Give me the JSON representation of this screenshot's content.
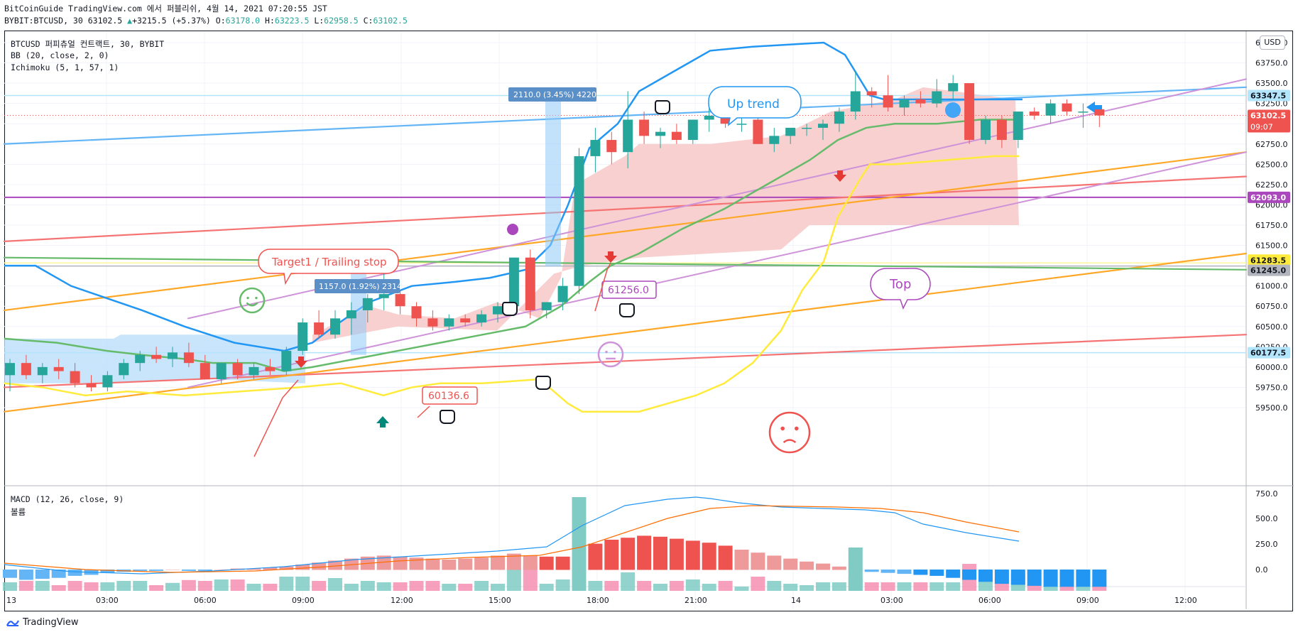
{
  "header": {
    "line1": "BitCoinGuide TradingView.com 에서 퍼블리쉬, 4월 14, 2021 07:20:55 JST",
    "symbol": "BYBIT:BTCUSD, 30",
    "last": "63102.5",
    "change": "+3215.5 (+5.37%)",
    "o_label": "O:",
    "o": "63178.0",
    "h_label": "H:",
    "h": "63223.5",
    "l_label": "L:",
    "l": "62958.5",
    "c_label": "C:",
    "c": "63102.5"
  },
  "legend": {
    "title": "BTCUSD 퍼피츄얼 컨트랙트, 30, BYBIT",
    "bb": "BB (20, close, 2, 0)",
    "ichimoku": "Ichimoku (5, 1, 57, 1)",
    "macd": "MACD (12, 26, close, 9)",
    "volume": "볼륨"
  },
  "currency_badge": "USD",
  "annotations": {
    "target": "Target1 / Trailing stop",
    "up_trend": "Up trend",
    "top": "Top",
    "measure1": "1157.0 (1.92%) 2314",
    "measure2": "2110.0 (3.45%) 4220",
    "level1": "60136.6",
    "level2": "61256.0"
  },
  "price_badges": {
    "p1": "63347.5",
    "p2": "63102.5",
    "p2_sub": "09:07",
    "p3": "62093.0",
    "p4": "61283.5",
    "p5": "61245.0",
    "p6": "60177.5"
  },
  "footer": {
    "brand": "TradingView"
  },
  "colors": {
    "up": "#26a69a",
    "down": "#ef5350",
    "bb": "#2196f3",
    "tenkan": "#4caf50",
    "kijun_yellow": "#ffeb3b",
    "cloud_red": "#f8c8c8",
    "cloud_blue": "#bbdefb",
    "orange": "#ffa726",
    "red_line": "#f57373",
    "purple": "#ab47bc"
  },
  "chart_data": {
    "type": "candlestick",
    "price_axis": {
      "ticks": [
        "64000.0",
        "63750.0",
        "63500.0",
        "63250.0",
        "63000.0",
        "62750.0",
        "62500.0",
        "62250.0",
        "62000.0",
        "61750.0",
        "61500.0",
        "61250.0",
        "61000.0",
        "60750.0",
        "60500.0",
        "60250.0",
        "60000.0",
        "59750.0",
        "59500.0"
      ],
      "ylim": [
        59400,
        64100
      ]
    },
    "macd_axis": {
      "ticks": [
        "750.0",
        "500.0",
        "250.0",
        "0.0"
      ]
    },
    "time_axis": [
      "13",
      "03:00",
      "06:00",
      "09:00",
      "12:00",
      "15:00",
      "18:00",
      "21:00",
      "14",
      "03:00",
      "06:00",
      "09:00",
      "12:00"
    ],
    "candles": [
      {
        "o": 59900,
        "h": 60100,
        "l": 59700,
        "c": 60050
      },
      {
        "o": 60050,
        "h": 60150,
        "l": 59850,
        "c": 59900
      },
      {
        "o": 59900,
        "h": 60050,
        "l": 59800,
        "c": 60000
      },
      {
        "o": 60000,
        "h": 60100,
        "l": 59850,
        "c": 59950
      },
      {
        "o": 59950,
        "h": 60050,
        "l": 59750,
        "c": 59800
      },
      {
        "o": 59800,
        "h": 59900,
        "l": 59700,
        "c": 59750
      },
      {
        "o": 59750,
        "h": 59950,
        "l": 59700,
        "c": 59900
      },
      {
        "o": 59900,
        "h": 60100,
        "l": 59850,
        "c": 60050
      },
      {
        "o": 60050,
        "h": 60200,
        "l": 59950,
        "c": 60150
      },
      {
        "o": 60150,
        "h": 60250,
        "l": 60050,
        "c": 60100
      },
      {
        "o": 60100,
        "h": 60250,
        "l": 60000,
        "c": 60180
      },
      {
        "o": 60180,
        "h": 60300,
        "l": 60000,
        "c": 60050
      },
      {
        "o": 60050,
        "h": 60150,
        "l": 59850,
        "c": 59850
      },
      {
        "o": 59850,
        "h": 60050,
        "l": 59800,
        "c": 60050
      },
      {
        "o": 60050,
        "h": 60100,
        "l": 59850,
        "c": 59900
      },
      {
        "o": 59900,
        "h": 60050,
        "l": 59850,
        "c": 60000
      },
      {
        "o": 60000,
        "h": 60100,
        "l": 59900,
        "c": 59950
      },
      {
        "o": 59950,
        "h": 60250,
        "l": 59900,
        "c": 60200
      },
      {
        "o": 60200,
        "h": 60600,
        "l": 60150,
        "c": 60550
      },
      {
        "o": 60550,
        "h": 60700,
        "l": 60350,
        "c": 60400
      },
      {
        "o": 60400,
        "h": 60700,
        "l": 60350,
        "c": 60600
      },
      {
        "o": 60600,
        "h": 60800,
        "l": 60400,
        "c": 60700
      },
      {
        "o": 60700,
        "h": 60900,
        "l": 60550,
        "c": 60850
      },
      {
        "o": 60850,
        "h": 61150,
        "l": 60700,
        "c": 60900
      },
      {
        "o": 60900,
        "h": 60950,
        "l": 60650,
        "c": 60750
      },
      {
        "o": 60750,
        "h": 60800,
        "l": 60500,
        "c": 60600
      },
      {
        "o": 60600,
        "h": 60700,
        "l": 60450,
        "c": 60500
      },
      {
        "o": 60500,
        "h": 60650,
        "l": 60450,
        "c": 60600
      },
      {
        "o": 60600,
        "h": 60650,
        "l": 60500,
        "c": 60550
      },
      {
        "o": 60550,
        "h": 60700,
        "l": 60500,
        "c": 60650
      },
      {
        "o": 60650,
        "h": 60800,
        "l": 60550,
        "c": 60750
      },
      {
        "o": 60750,
        "h": 61350,
        "l": 60650,
        "c": 61350
      },
      {
        "o": 61350,
        "h": 61450,
        "l": 60600,
        "c": 60700
      },
      {
        "o": 60700,
        "h": 60800,
        "l": 60600,
        "c": 60800
      },
      {
        "o": 60800,
        "h": 61100,
        "l": 60700,
        "c": 61000
      },
      {
        "o": 61000,
        "h": 62700,
        "l": 60900,
        "c": 62600
      },
      {
        "o": 62600,
        "h": 62950,
        "l": 62400,
        "c": 62800
      },
      {
        "o": 62800,
        "h": 62900,
        "l": 62500,
        "c": 62650
      },
      {
        "o": 62650,
        "h": 63400,
        "l": 62450,
        "c": 63050
      },
      {
        "o": 63050,
        "h": 63150,
        "l": 62750,
        "c": 62850
      },
      {
        "o": 62850,
        "h": 62950,
        "l": 62700,
        "c": 62900
      },
      {
        "o": 62900,
        "h": 63000,
        "l": 62750,
        "c": 62800
      },
      {
        "o": 62800,
        "h": 63050,
        "l": 62750,
        "c": 63050
      },
      {
        "o": 63050,
        "h": 63250,
        "l": 62900,
        "c": 63100
      },
      {
        "o": 63100,
        "h": 63150,
        "l": 62950,
        "c": 63000
      },
      {
        "o": 63000,
        "h": 63100,
        "l": 62900,
        "c": 63000
      },
      {
        "o": 63050,
        "h": 63100,
        "l": 62750,
        "c": 62750
      },
      {
        "o": 62750,
        "h": 62950,
        "l": 62650,
        "c": 62850
      },
      {
        "o": 62850,
        "h": 62950,
        "l": 62750,
        "c": 62950
      },
      {
        "o": 62950,
        "h": 63000,
        "l": 62850,
        "c": 62950
      },
      {
        "o": 62950,
        "h": 63050,
        "l": 62800,
        "c": 63000
      },
      {
        "o": 63000,
        "h": 63200,
        "l": 62900,
        "c": 63150
      },
      {
        "o": 63150,
        "h": 63650,
        "l": 63050,
        "c": 63400
      },
      {
        "o": 63400,
        "h": 63450,
        "l": 63200,
        "c": 63350
      },
      {
        "o": 63350,
        "h": 63600,
        "l": 63150,
        "c": 63200
      },
      {
        "o": 63200,
        "h": 63350,
        "l": 63100,
        "c": 63300
      },
      {
        "o": 63300,
        "h": 63400,
        "l": 63200,
        "c": 63250
      },
      {
        "o": 63250,
        "h": 63550,
        "l": 63200,
        "c": 63400
      },
      {
        "o": 63400,
        "h": 63600,
        "l": 63300,
        "c": 63500
      },
      {
        "o": 63500,
        "h": 63500,
        "l": 62750,
        "c": 62800
      },
      {
        "o": 62800,
        "h": 63100,
        "l": 62750,
        "c": 63050
      },
      {
        "o": 63050,
        "h": 63100,
        "l": 62700,
        "c": 62800
      },
      {
        "o": 62800,
        "h": 63150,
        "l": 62700,
        "c": 63150
      },
      {
        "o": 63150,
        "h": 63200,
        "l": 63050,
        "c": 63100
      },
      {
        "o": 63100,
        "h": 63300,
        "l": 63000,
        "c": 63250
      },
      {
        "o": 63250,
        "h": 63300,
        "l": 63100,
        "c": 63150
      },
      {
        "o": 63150,
        "h": 63250,
        "l": 62950,
        "c": 63150
      },
      {
        "o": 63178,
        "h": 63223.5,
        "l": 62958.5,
        "c": 63102.5
      }
    ]
  }
}
